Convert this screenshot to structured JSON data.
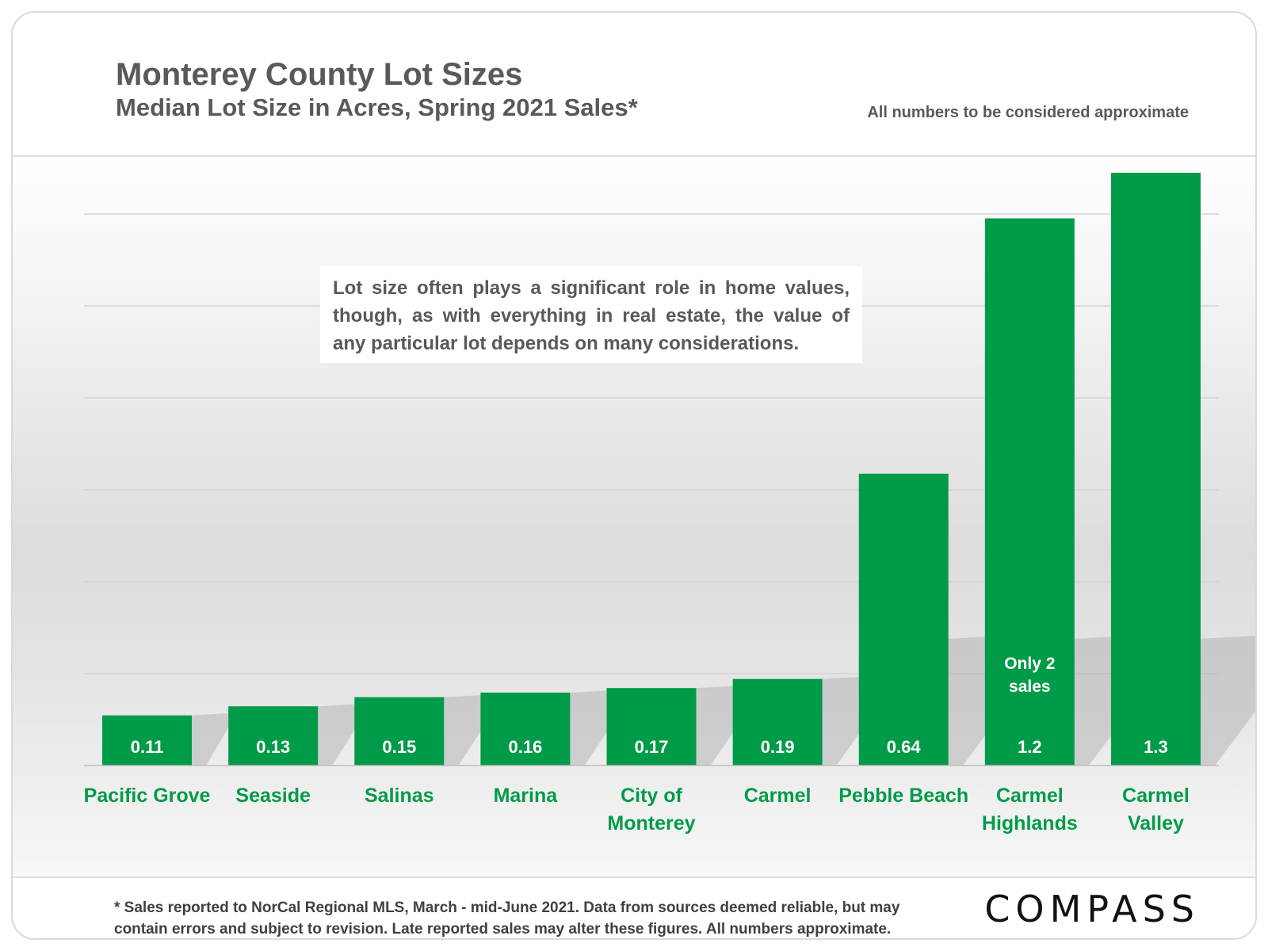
{
  "header": {
    "title": "Monterey County Lot Sizes",
    "subtitle": "Median Lot Size in Acres, Spring 2021 Sales*",
    "note": "All numbers to be considered approximate"
  },
  "callout": {
    "text": "Lot size often plays a significant role in home values, though, as with everything in real estate, the value of any particular lot depends on many considerations."
  },
  "footer": {
    "footnote": "* Sales reported to NorCal Regional MLS, March - mid-June 2021. Data from sources deemed reliable, but may contain errors and subject to revision. Late reported sales may alter these figures. All numbers approximate.",
    "logo": "COMPASS"
  },
  "chart_data": {
    "type": "bar",
    "title": "Monterey County Lot Sizes",
    "subtitle": "Median Lot Size in Acres, Spring 2021 Sales*",
    "xlabel": "",
    "ylabel": "",
    "ylim": [
      0,
      1.3
    ],
    "grid": true,
    "categories": [
      [
        "Pacific Grove"
      ],
      [
        "Seaside"
      ],
      [
        "Salinas"
      ],
      [
        "Marina"
      ],
      [
        "City of",
        "Monterey"
      ],
      [
        "Carmel"
      ],
      [
        "Pebble Beach"
      ],
      [
        "Carmel",
        "Highlands"
      ],
      [
        "Carmel",
        "Valley"
      ]
    ],
    "values": [
      0.11,
      0.13,
      0.15,
      0.16,
      0.17,
      0.19,
      0.64,
      1.2,
      1.3
    ],
    "value_labels": [
      "0.11",
      "0.13",
      "0.15",
      "0.16",
      "0.17",
      "0.19",
      "0.64",
      "1.2",
      "1.3"
    ],
    "annotations": [
      {
        "category_index": 7,
        "lines": [
          "Only 2",
          "sales"
        ]
      }
    ],
    "colors": {
      "bar": "#009b48",
      "category_label": "#009b48",
      "value_label": "#ffffff",
      "gridline": "#d4d4d4"
    }
  }
}
